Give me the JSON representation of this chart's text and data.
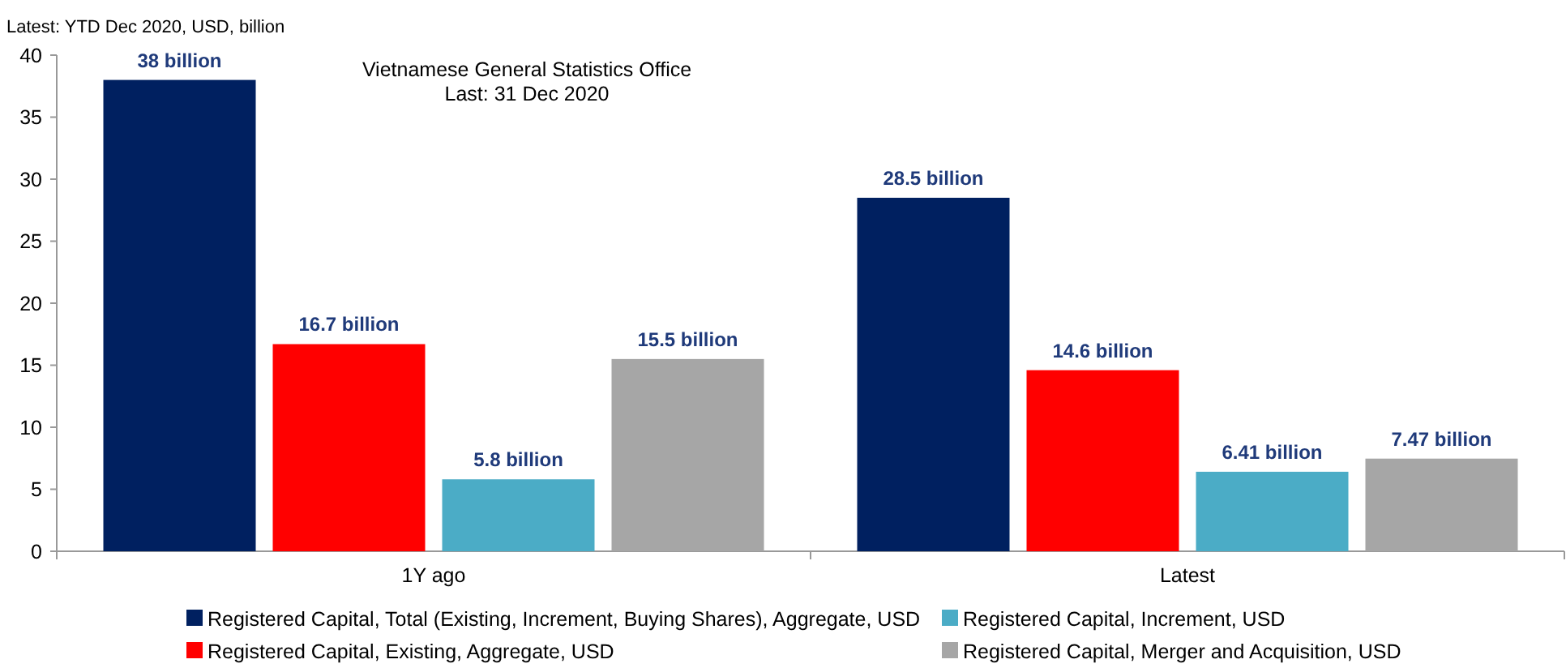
{
  "chart_data": {
    "type": "bar",
    "title": "Latest: YTD Dec 2020, USD, billion",
    "annotations": [
      "Vietnamese General Statistics Office\nLast: 31 Dec 2020"
    ],
    "categories": [
      "1Y ago",
      "Latest"
    ],
    "series": [
      {
        "name": "Registered Capital, Total (Existing, Increment, Buying Shares), Aggregate, USD",
        "color": "#002060",
        "values": [
          38,
          28.5
        ],
        "value_labels": [
          "38 billion",
          "28.5 billion"
        ]
      },
      {
        "name": "Registered Capital, Existing, Aggregate, USD",
        "color": "#ff0000",
        "values": [
          16.7,
          14.6
        ],
        "value_labels": [
          "16.7 billion",
          "14.6 billion"
        ]
      },
      {
        "name": "Registered Capital, Increment, USD",
        "color": "#4bacc6",
        "values": [
          5.8,
          6.41
        ],
        "value_labels": [
          "5.8 billion",
          "6.41 billion"
        ]
      },
      {
        "name": "Registered Capital, Merger and Acquisition, USD",
        "color": "#a6a6a6",
        "values": [
          15.5,
          7.47
        ],
        "value_labels": [
          "15.5 billion",
          "7.47 billion"
        ]
      }
    ],
    "ylim": [
      0,
      40
    ],
    "yticks": [
      0,
      5,
      10,
      15,
      20,
      25,
      30,
      35,
      40
    ],
    "grid": false,
    "legend": "bottom"
  }
}
